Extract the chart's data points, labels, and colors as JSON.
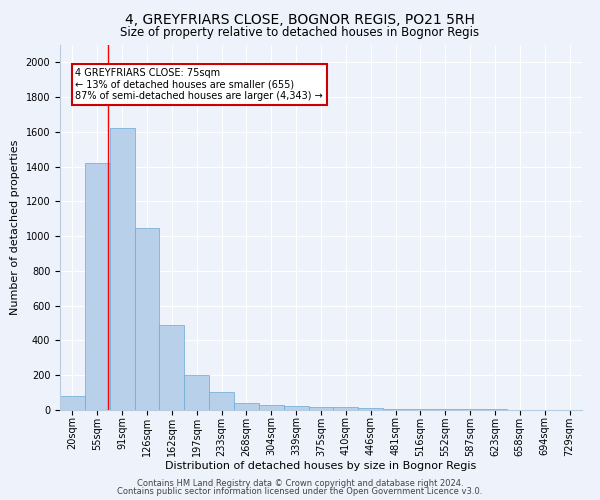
{
  "title": "4, GREYFRIARS CLOSE, BOGNOR REGIS, PO21 5RH",
  "subtitle": "Size of property relative to detached houses in Bognor Regis",
  "xlabel": "Distribution of detached houses by size in Bognor Regis",
  "ylabel": "Number of detached properties",
  "footnote1": "Contains HM Land Registry data © Crown copyright and database right 2024.",
  "footnote2": "Contains public sector information licensed under the Open Government Licence v3.0.",
  "bar_labels": [
    "20sqm",
    "55sqm",
    "91sqm",
    "126sqm",
    "162sqm",
    "197sqm",
    "233sqm",
    "268sqm",
    "304sqm",
    "339sqm",
    "375sqm",
    "410sqm",
    "446sqm",
    "481sqm",
    "516sqm",
    "552sqm",
    "587sqm",
    "623sqm",
    "658sqm",
    "694sqm",
    "729sqm"
  ],
  "bar_values": [
    80,
    1420,
    1620,
    1050,
    490,
    200,
    105,
    40,
    30,
    22,
    20,
    15,
    12,
    8,
    6,
    5,
    4,
    3,
    2,
    2,
    1
  ],
  "bar_color": "#b8d0ea",
  "bar_edge_color": "#6aaad4",
  "bar_width": 1.0,
  "ylim": [
    0,
    2100
  ],
  "yticks": [
    0,
    200,
    400,
    600,
    800,
    1000,
    1200,
    1400,
    1600,
    1800,
    2000
  ],
  "bg_color": "#edf2fb",
  "grid_color": "#ffffff",
  "red_line_x": 1.42,
  "annotation_text": "4 GREYFRIARS CLOSE: 75sqm\n← 13% of detached houses are smaller (655)\n87% of semi-detached houses are larger (4,343) →",
  "annotation_box_color": "#ffffff",
  "annotation_box_edge": "#cc0000",
  "title_fontsize": 10,
  "subtitle_fontsize": 8.5,
  "ylabel_fontsize": 8,
  "xlabel_fontsize": 8,
  "tick_fontsize": 7,
  "footnote_fontsize": 6
}
